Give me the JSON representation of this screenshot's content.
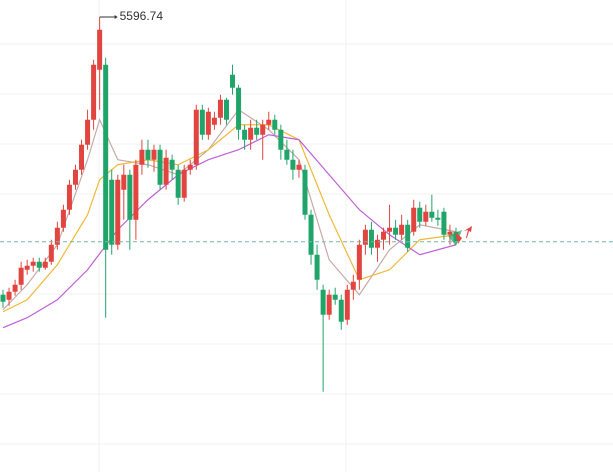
{
  "chart_data": {
    "type": "candlestick",
    "up_color": "#e2443f",
    "down_color": "#1fa56a",
    "ylim": [
      5141.74,
      5613.74
    ],
    "candles": [
      [
        5319,
        5324,
        5306,
        5312
      ],
      [
        5314,
        5326,
        5308,
        5322
      ],
      [
        5322,
        5334,
        5318,
        5329
      ],
      [
        5329,
        5352,
        5324,
        5346
      ],
      [
        5344,
        5354,
        5339,
        5348
      ],
      [
        5348,
        5356,
        5342,
        5352
      ],
      [
        5352,
        5356,
        5342,
        5346
      ],
      [
        5346,
        5356,
        5344,
        5352
      ],
      [
        5352,
        5374,
        5349,
        5369
      ],
      [
        5369,
        5392,
        5364,
        5386
      ],
      [
        5386,
        5409,
        5382,
        5404
      ],
      [
        5404,
        5434,
        5399,
        5429
      ],
      [
        5429,
        5449,
        5424,
        5444
      ],
      [
        5444,
        5474,
        5439,
        5469
      ],
      [
        5469,
        5504,
        5464,
        5494
      ],
      [
        5494,
        5554,
        5484,
        5549
      ],
      [
        5544,
        5596.74,
        5504,
        5584
      ],
      [
        5549,
        5556,
        5296,
        5364
      ],
      [
        5434,
        5444,
        5359,
        5369
      ],
      [
        5369,
        5439,
        5364,
        5434
      ],
      [
        5424,
        5449,
        5394,
        5439
      ],
      [
        5439,
        5444,
        5364,
        5394
      ],
      [
        5394,
        5454,
        5374,
        5449
      ],
      [
        5449,
        5474,
        5439,
        5464
      ],
      [
        5464,
        5474,
        5446,
        5454
      ],
      [
        5454,
        5469,
        5442,
        5464
      ],
      [
        5464,
        5469,
        5424,
        5429
      ],
      [
        5429,
        5464,
        5424,
        5456
      ],
      [
        5454,
        5459,
        5434,
        5444
      ],
      [
        5444,
        5449,
        5409,
        5416
      ],
      [
        5416,
        5449,
        5412,
        5444
      ],
      [
        5444,
        5454,
        5439,
        5449
      ],
      [
        5449,
        5509,
        5444,
        5504
      ],
      [
        5504,
        5509,
        5474,
        5479
      ],
      [
        5479,
        5506,
        5474,
        5502
      ],
      [
        5489,
        5502,
        5484,
        5496
      ],
      [
        5496,
        5519,
        5489,
        5514
      ],
      [
        5514,
        5516,
        5489,
        5494
      ],
      [
        5539,
        5549,
        5519,
        5526
      ],
      [
        5526,
        5529,
        5474,
        5484
      ],
      [
        5484,
        5489,
        5464,
        5474
      ],
      [
        5474,
        5494,
        5464,
        5486
      ],
      [
        5486,
        5494,
        5474,
        5479
      ],
      [
        5479,
        5494,
        5454,
        5489
      ],
      [
        5489,
        5502,
        5484,
        5494
      ],
      [
        5494,
        5499,
        5479,
        5484
      ],
      [
        5484,
        5489,
        5454,
        5464
      ],
      [
        5464,
        5474,
        5449,
        5454
      ],
      [
        5454,
        5464,
        5434,
        5444
      ],
      [
        5444,
        5454,
        5436,
        5449
      ],
      [
        5444,
        5449,
        5394,
        5399
      ],
      [
        5399,
        5404,
        5349,
        5359
      ],
      [
        5359,
        5369,
        5324,
        5334
      ],
      [
        5324,
        5329,
        5222,
        5299
      ],
      [
        5299,
        5324,
        5294,
        5319
      ],
      [
        5319,
        5326,
        5309,
        5314
      ],
      [
        5314,
        5319,
        5284,
        5292
      ],
      [
        5294,
        5329,
        5289,
        5324
      ],
      [
        5324,
        5339,
        5314,
        5332
      ],
      [
        5334,
        5374,
        5324,
        5369
      ],
      [
        5369,
        5389,
        5359,
        5384
      ],
      [
        5384,
        5392,
        5359,
        5366
      ],
      [
        5366,
        5379,
        5352,
        5374
      ],
      [
        5374,
        5386,
        5364,
        5382
      ],
      [
        5382,
        5409,
        5369,
        5386
      ],
      [
        5386,
        5394,
        5374,
        5379
      ],
      [
        5379,
        5399,
        5374,
        5389
      ],
      [
        5389,
        5394,
        5362,
        5366
      ],
      [
        5382,
        5414,
        5378,
        5406
      ],
      [
        5406,
        5412,
        5386,
        5392
      ],
      [
        5392,
        5409,
        5388,
        5402
      ],
      [
        5402,
        5419,
        5392,
        5396
      ],
      [
        5396,
        5404,
        5388,
        5394
      ],
      [
        5402,
        5406,
        5374,
        5379
      ],
      [
        5379,
        5389,
        5369,
        5382
      ],
      [
        5382,
        5386,
        5369,
        5372
      ]
    ],
    "lines": [
      {
        "color": "#c9aaa8",
        "x": [
          0,
          4,
          9,
          14,
          16,
          19,
          24,
          29,
          34,
          39,
          44,
          49,
          54,
          59,
          64,
          69,
          75
        ],
        "values": [
          5304,
          5329,
          5369,
          5454,
          5494,
          5454,
          5449,
          5439,
          5464,
          5504,
          5484,
          5454,
          5354,
          5319,
          5364,
          5389,
          5382
        ]
      },
      {
        "color": "#f0b93a",
        "x": [
          0,
          4,
          9,
          14,
          16,
          19,
          24,
          29,
          34,
          39,
          44,
          49,
          54,
          59,
          64,
          69,
          75
        ],
        "values": [
          5302,
          5314,
          5349,
          5399,
          5434,
          5449,
          5454,
          5449,
          5464,
          5489,
          5489,
          5474,
          5399,
          5334,
          5344,
          5374,
          5379
        ]
      },
      {
        "color": "#c060d8",
        "x": [
          0,
          4,
          9,
          14,
          19,
          24,
          29,
          34,
          39,
          44,
          49,
          54,
          59,
          64,
          69,
          75
        ],
        "values": [
          5286,
          5296,
          5314,
          5344,
          5384,
          5414,
          5439,
          5454,
          5464,
          5479,
          5474,
          5439,
          5404,
          5379,
          5359,
          5369
        ]
      }
    ]
  }
}
